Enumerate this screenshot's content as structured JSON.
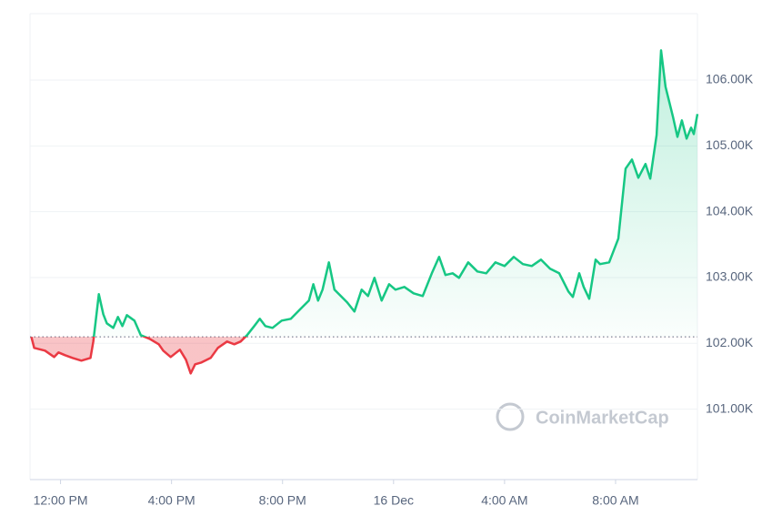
{
  "chart_data": {
    "type": "line",
    "watermark": "CoinMarketCap",
    "x": [
      -1.05,
      -0.95,
      -0.56,
      -0.23,
      -0.07,
      0.16,
      0.43,
      0.75,
      1.08,
      1.18,
      1.38,
      1.54,
      1.67,
      1.9,
      2.07,
      2.23,
      2.39,
      2.66,
      2.89,
      3.21,
      3.54,
      3.7,
      3.97,
      4.3,
      4.52,
      4.69,
      4.85,
      5.08,
      5.41,
      5.67,
      6.0,
      6.26,
      6.49,
      6.72,
      6.98,
      7.18,
      7.38,
      7.64,
      7.97,
      8.3,
      8.62,
      8.95,
      9.11,
      9.28,
      9.44,
      9.67,
      9.87,
      10.1,
      10.33,
      10.59,
      10.85,
      11.08,
      11.31,
      11.57,
      11.84,
      12.07,
      12.39,
      12.72,
      13.05,
      13.38,
      13.64,
      13.87,
      14.13,
      14.36,
      14.69,
      15.02,
      15.34,
      15.67,
      16.0,
      16.33,
      16.66,
      16.98,
      17.31,
      17.64,
      17.97,
      18.3,
      18.46,
      18.69,
      18.85,
      19.05,
      19.28,
      19.44,
      19.77,
      20.1,
      20.36,
      20.59,
      20.82,
      21.08,
      21.25,
      21.48,
      21.64,
      21.8,
      22.07,
      22.23,
      22.39,
      22.56,
      22.72,
      22.82,
      22.95
    ],
    "values": [
      102097,
      101931,
      101889,
      101793,
      101862,
      101820,
      101779,
      101737,
      101779,
      102028,
      102747,
      102443,
      102304,
      102235,
      102401,
      102263,
      102429,
      102346,
      102124,
      102069,
      101986,
      101889,
      101793,
      101903,
      101751,
      101544,
      101682,
      101710,
      101779,
      101931,
      102028,
      101986,
      102028,
      102124,
      102263,
      102374,
      102263,
      102235,
      102346,
      102374,
      102512,
      102650,
      102899,
      102650,
      102816,
      103231,
      102816,
      102719,
      102622,
      102484,
      102816,
      102719,
      102996,
      102650,
      102899,
      102816,
      102857,
      102761,
      102719,
      103065,
      103314,
      103038,
      103065,
      102996,
      103231,
      103093,
      103065,
      103231,
      103176,
      103314,
      103204,
      103176,
      103272,
      103134,
      103065,
      102788,
      102705,
      103065,
      102857,
      102678,
      103272,
      103204,
      103231,
      103591,
      104655,
      104793,
      104517,
      104725,
      104503,
      105167,
      106452,
      105899,
      105442,
      105138,
      105388,
      105111,
      105277,
      105180,
      105485
    ],
    "baseline": 102100,
    "up_color": "#16c784",
    "down_color": "#ea3943",
    "xlim": [
      -1.1,
      22.95
    ],
    "xticks": [
      {
        "value": 0,
        "label": "12:00 PM"
      },
      {
        "value": 4,
        "label": "4:00 PM"
      },
      {
        "value": 8,
        "label": "8:00 PM"
      },
      {
        "value": 12,
        "label": "16 Dec"
      },
      {
        "value": 16,
        "label": "4:00 AM"
      },
      {
        "value": 20,
        "label": "8:00 AM"
      }
    ],
    "ylim": [
      99930,
      107010
    ],
    "yticks": [
      {
        "value": 101000,
        "label": "101.00K"
      },
      {
        "value": 102000,
        "label": "102.00K"
      },
      {
        "value": 103000,
        "label": "103.00K"
      },
      {
        "value": 104000,
        "label": "104.00K"
      },
      {
        "value": 105000,
        "label": "105.00K"
      },
      {
        "value": 106000,
        "label": "106.00K"
      }
    ],
    "grid": true
  }
}
